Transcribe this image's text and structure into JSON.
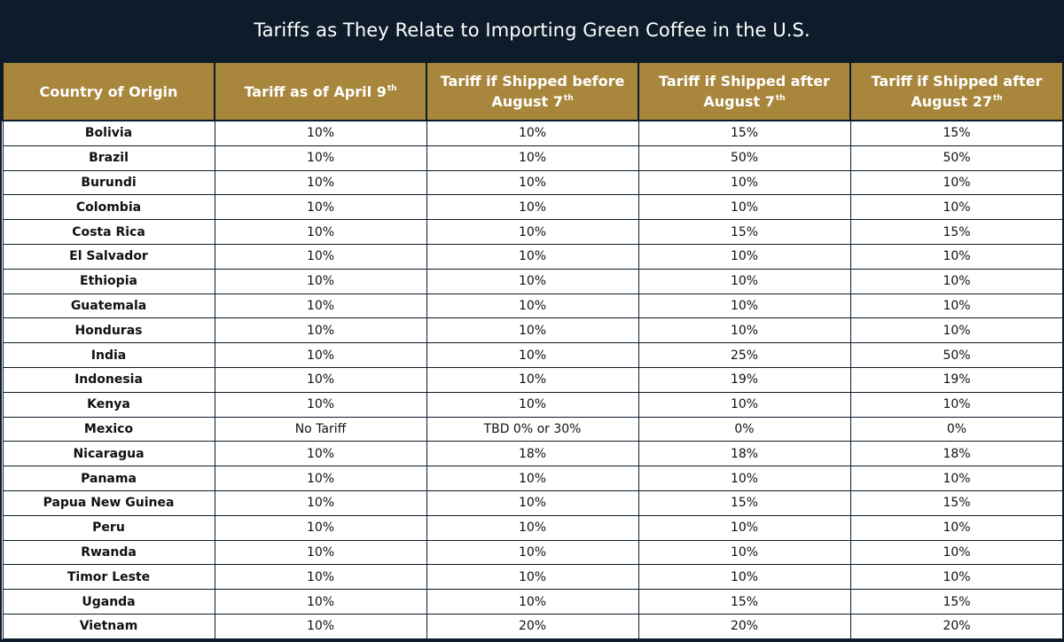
{
  "chart_data": {
    "type": "table",
    "title": "Tariffs as They Relate to Importing Green Coffee in the U.S.",
    "columns": [
      {
        "text": "Country of Origin",
        "sup": ""
      },
      {
        "text": "Tariff as of April 9",
        "sup": "th"
      },
      {
        "text": "Tariff if Shipped before August 7",
        "sup": "th"
      },
      {
        "text": "Tariff if Shipped after August 7",
        "sup": "th"
      },
      {
        "text": "Tariff if Shipped after August 27",
        "sup": "th"
      }
    ],
    "rows": [
      [
        "Bolivia",
        "10%",
        "10%",
        "15%",
        "15%"
      ],
      [
        "Brazil",
        "10%",
        "10%",
        "50%",
        "50%"
      ],
      [
        "Burundi",
        "10%",
        "10%",
        "10%",
        "10%"
      ],
      [
        "Colombia",
        "10%",
        "10%",
        "10%",
        "10%"
      ],
      [
        "Costa Rica",
        "10%",
        "10%",
        "15%",
        "15%"
      ],
      [
        "El Salvador",
        "10%",
        "10%",
        "10%",
        "10%"
      ],
      [
        "Ethiopia",
        "10%",
        "10%",
        "10%",
        "10%"
      ],
      [
        "Guatemala",
        "10%",
        "10%",
        "10%",
        "10%"
      ],
      [
        "Honduras",
        "10%",
        "10%",
        "10%",
        "10%"
      ],
      [
        "India",
        "10%",
        "10%",
        "25%",
        "50%"
      ],
      [
        "Indonesia",
        "10%",
        "10%",
        "19%",
        "19%"
      ],
      [
        "Kenya",
        "10%",
        "10%",
        "10%",
        "10%"
      ],
      [
        "Mexico",
        "No Tariff",
        "TBD 0% or 30%",
        "0%",
        "0%"
      ],
      [
        "Nicaragua",
        "10%",
        "18%",
        "18%",
        "18%"
      ],
      [
        "Panama",
        "10%",
        "10%",
        "10%",
        "10%"
      ],
      [
        "Papua New Guinea",
        "10%",
        "10%",
        "15%",
        "15%"
      ],
      [
        "Peru",
        "10%",
        "10%",
        "10%",
        "10%"
      ],
      [
        "Rwanda",
        "10%",
        "10%",
        "10%",
        "10%"
      ],
      [
        "Timor Leste",
        "10%",
        "10%",
        "10%",
        "10%"
      ],
      [
        "Uganda",
        "10%",
        "10%",
        "15%",
        "15%"
      ],
      [
        "Vietnam",
        "10%",
        "20%",
        "20%",
        "20%"
      ]
    ]
  },
  "colors": {
    "background": "#0d1b2a",
    "header_fill": "#a8863c",
    "header_text": "#ffffff",
    "cell_fill": "#ffffff",
    "cell_text": "#111111"
  }
}
